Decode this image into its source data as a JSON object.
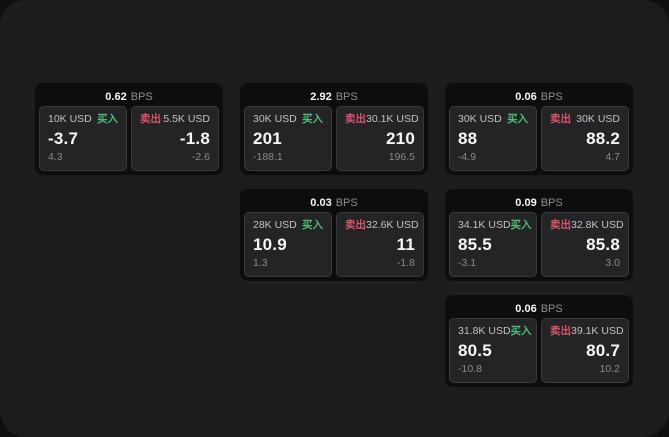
{
  "labels": {
    "buy": "买入",
    "sell": "卖出",
    "unit": "BPS"
  },
  "colors": {
    "buy_accent": "#4dbe74",
    "sell_accent": "#d85568",
    "panel_background": "#1c1c1e",
    "card_background": "#0d0d0f",
    "pane_background": "#242427"
  },
  "cards": [
    {
      "bps": "0.62",
      "buy": {
        "amount": "10K USD",
        "value": "-3.7",
        "delta": "4.3"
      },
      "sell": {
        "amount": "5.5K USD",
        "value": "-1.8",
        "delta": "-2.6"
      }
    },
    {
      "bps": "2.92",
      "buy": {
        "amount": "30K USD",
        "value": "201",
        "delta": "-188.1"
      },
      "sell": {
        "amount": "30.1K USD",
        "value": "210",
        "delta": "196.5"
      }
    },
    {
      "bps": "0.06",
      "buy": {
        "amount": "30K USD",
        "value": "88",
        "delta": "-4.9"
      },
      "sell": {
        "amount": "30K USD",
        "value": "88.2",
        "delta": "4.7"
      }
    },
    {
      "bps": "0.03",
      "buy": {
        "amount": "28K USD",
        "value": "10.9",
        "delta": "1.3"
      },
      "sell": {
        "amount": "32.6K USD",
        "value": "11",
        "delta": "-1.8"
      }
    },
    {
      "bps": "0.09",
      "buy": {
        "amount": "34.1K USD",
        "value": "85.5",
        "delta": "-3.1"
      },
      "sell": {
        "amount": "32.8K USD",
        "value": "85.8",
        "delta": "3.0"
      }
    },
    {
      "bps": "0.06",
      "buy": {
        "amount": "31.8K USD",
        "value": "80.5",
        "delta": "-10.8"
      },
      "sell": {
        "amount": "39.1K USD",
        "value": "80.7",
        "delta": "10.2"
      }
    }
  ]
}
